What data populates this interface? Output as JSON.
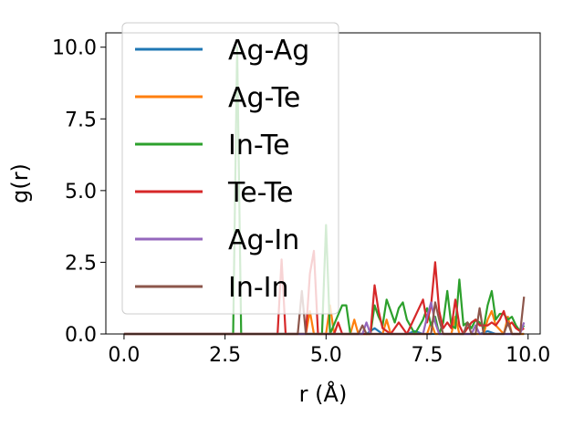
{
  "chart_data": {
    "type": "line",
    "xlabel": "r (Å)",
    "ylabel": "g(r)",
    "xlim": [
      -0.45,
      10.3
    ],
    "ylim": [
      0,
      10.5
    ],
    "xticks": [
      0.0,
      2.5,
      5.0,
      7.5,
      10.0
    ],
    "xtick_labels": [
      "0.0",
      "2.5",
      "5.0",
      "7.5",
      "10.0"
    ],
    "yticks": [
      0.0,
      2.5,
      5.0,
      7.5,
      10.0
    ],
    "ytick_labels": [
      "0.0",
      "2.5",
      "5.0",
      "7.5",
      "10.0"
    ],
    "grid": false,
    "legend_position": "upper-left",
    "series": [
      {
        "name": "Ag-Ag",
        "color": "#1f77b4",
        "points": [
          [
            0,
            0
          ],
          [
            6.0,
            0
          ],
          [
            6.2,
            0.2
          ],
          [
            6.4,
            0
          ],
          [
            7.0,
            0
          ],
          [
            7.2,
            0.1
          ],
          [
            7.4,
            0
          ],
          [
            8.8,
            0
          ],
          [
            9.0,
            0.1
          ],
          [
            9.2,
            0
          ],
          [
            9.9,
            0
          ]
        ]
      },
      {
        "name": "Ag-Te",
        "color": "#ff7f0e",
        "points": [
          [
            0,
            0
          ],
          [
            4.5,
            0
          ],
          [
            4.6,
            0.8
          ],
          [
            4.7,
            0
          ],
          [
            5.0,
            0
          ],
          [
            5.1,
            1.0
          ],
          [
            5.2,
            0
          ],
          [
            5.6,
            0
          ],
          [
            5.7,
            0.5
          ],
          [
            5.8,
            0
          ],
          [
            6.4,
            0
          ],
          [
            6.5,
            0.5
          ],
          [
            6.6,
            0
          ],
          [
            7.5,
            0
          ],
          [
            7.6,
            0.4
          ],
          [
            7.7,
            0
          ],
          [
            8.1,
            0
          ],
          [
            8.2,
            0.6
          ],
          [
            8.3,
            0
          ],
          [
            8.9,
            0
          ],
          [
            9.0,
            0.5
          ],
          [
            9.1,
            0.8
          ],
          [
            9.2,
            0.3
          ],
          [
            9.4,
            0
          ],
          [
            9.5,
            0.6
          ],
          [
            9.6,
            0
          ],
          [
            9.9,
            0
          ]
        ]
      },
      {
        "name": "In-Te",
        "color": "#2ca02c",
        "points": [
          [
            0,
            0
          ],
          [
            2.7,
            0
          ],
          [
            2.8,
            10.0
          ],
          [
            2.9,
            0
          ],
          [
            4.9,
            0
          ],
          [
            5.0,
            3.8
          ],
          [
            5.1,
            0
          ],
          [
            5.4,
            1.0
          ],
          [
            5.5,
            1.0
          ],
          [
            5.6,
            0
          ],
          [
            6.1,
            0
          ],
          [
            6.2,
            1.0
          ],
          [
            6.3,
            0.6
          ],
          [
            6.4,
            0.3
          ],
          [
            6.5,
            1.2
          ],
          [
            6.6,
            0.8
          ],
          [
            6.7,
            0.4
          ],
          [
            6.8,
            0.9
          ],
          [
            6.9,
            1.1
          ],
          [
            7.0,
            0.5
          ],
          [
            7.2,
            0
          ],
          [
            7.4,
            0.5
          ],
          [
            7.5,
            0.9
          ],
          [
            7.6,
            0.3
          ],
          [
            7.7,
            0.6
          ],
          [
            7.8,
            0
          ],
          [
            7.9,
            0.4
          ],
          [
            8.0,
            1.5
          ],
          [
            8.1,
            0.3
          ],
          [
            8.2,
            0.2
          ],
          [
            8.3,
            1.9
          ],
          [
            8.4,
            0.3
          ],
          [
            8.5,
            0.4
          ],
          [
            8.6,
            0.2
          ],
          [
            8.7,
            0.5
          ],
          [
            8.8,
            0.4
          ],
          [
            8.9,
            0.2
          ],
          [
            9.0,
            1.0
          ],
          [
            9.1,
            1.5
          ],
          [
            9.2,
            0.5
          ],
          [
            9.3,
            0.7
          ],
          [
            9.4,
            0.7
          ],
          [
            9.5,
            0.5
          ],
          [
            9.6,
            0.6
          ],
          [
            9.7,
            0.3
          ],
          [
            9.8,
            0.1
          ],
          [
            9.9,
            0.3
          ]
        ]
      },
      {
        "name": "Te-Te",
        "color": "#d62728",
        "points": [
          [
            0,
            0
          ],
          [
            3.8,
            0
          ],
          [
            3.9,
            2.6
          ],
          [
            4.0,
            0
          ],
          [
            4.5,
            0
          ],
          [
            4.6,
            2.1
          ],
          [
            4.7,
            2.9
          ],
          [
            4.8,
            0
          ],
          [
            5.2,
            0
          ],
          [
            5.3,
            0.4
          ],
          [
            5.4,
            0
          ],
          [
            6.1,
            0
          ],
          [
            6.2,
            1.7
          ],
          [
            6.3,
            0.8
          ],
          [
            6.4,
            0.2
          ],
          [
            6.6,
            0
          ],
          [
            6.8,
            0.4
          ],
          [
            7.0,
            0
          ],
          [
            7.4,
            1.2
          ],
          [
            7.5,
            0.4
          ],
          [
            7.6,
            1.0
          ],
          [
            7.7,
            2.5
          ],
          [
            7.8,
            0.8
          ],
          [
            7.9,
            0.2
          ],
          [
            8.0,
            0.4
          ],
          [
            8.1,
            0.2
          ],
          [
            8.2,
            1.2
          ],
          [
            8.3,
            0.3
          ],
          [
            8.4,
            0
          ],
          [
            8.6,
            0.4
          ],
          [
            8.7,
            0.5
          ],
          [
            8.8,
            0.3
          ],
          [
            9.0,
            0.3
          ],
          [
            9.1,
            0.4
          ],
          [
            9.2,
            0.3
          ],
          [
            9.3,
            0.5
          ],
          [
            9.4,
            0.8
          ],
          [
            9.5,
            0.3
          ],
          [
            9.6,
            0.4
          ],
          [
            9.7,
            0.2
          ],
          [
            9.8,
            0.1
          ],
          [
            9.9,
            0.2
          ]
        ]
      },
      {
        "name": "Ag-In",
        "color": "#9467bd",
        "points": [
          [
            0,
            0
          ],
          [
            5.9,
            0
          ],
          [
            6.0,
            0.4
          ],
          [
            6.1,
            0
          ],
          [
            7.4,
            0
          ],
          [
            7.5,
            0.6
          ],
          [
            7.6,
            1.1
          ],
          [
            7.7,
            0.4
          ],
          [
            7.8,
            0
          ],
          [
            8.6,
            0
          ],
          [
            8.7,
            0.3
          ],
          [
            8.8,
            0
          ],
          [
            9.8,
            0
          ],
          [
            9.9,
            0.4
          ]
        ]
      },
      {
        "name": "In-In",
        "color": "#8c564b",
        "points": [
          [
            0,
            0
          ],
          [
            4.3,
            0
          ],
          [
            4.4,
            1.5
          ],
          [
            4.5,
            0
          ],
          [
            5.8,
            0
          ],
          [
            5.9,
            0.3
          ],
          [
            6.0,
            0
          ],
          [
            7.6,
            0
          ],
          [
            7.7,
            1.1
          ],
          [
            7.8,
            0.5
          ],
          [
            7.9,
            0
          ],
          [
            8.4,
            0
          ],
          [
            8.5,
            0.4
          ],
          [
            8.6,
            0
          ],
          [
            8.7,
            0
          ],
          [
            8.8,
            0.9
          ],
          [
            8.9,
            0
          ],
          [
            9.4,
            0
          ],
          [
            9.5,
            0.4
          ],
          [
            9.6,
            0
          ],
          [
            9.8,
            0
          ],
          [
            9.9,
            1.3
          ]
        ]
      }
    ]
  }
}
